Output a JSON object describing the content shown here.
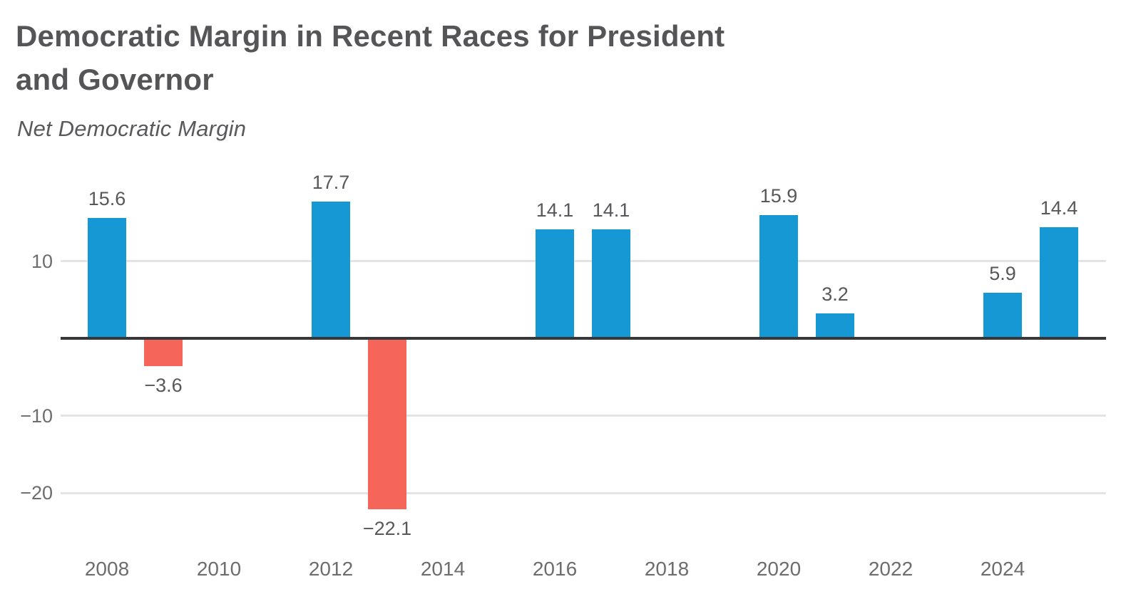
{
  "header": {
    "title_line1": "Democratic Margin in Recent Races for President",
    "title_line2": "and Governor",
    "subtitle": "Net Democratic Margin"
  },
  "colors": {
    "positive_bar": "#1598d3",
    "negative_bar": "#f6655a",
    "title_text": "#555557",
    "subtitle_text": "#59595b",
    "value_label_text": "#58585a",
    "tick_label_text": "#6d6d6f",
    "gridline": "#e4e4e4",
    "zero_line": "#373739",
    "background": "#ffffff"
  },
  "chart_data": {
    "type": "bar",
    "title": "Democratic Margin in Recent Races for President and Governor",
    "subtitle": "Net Democratic Margin",
    "xlabel": "",
    "ylabel": "Net Democratic Margin",
    "x": [
      2008,
      2009,
      2012,
      2013,
      2016,
      2017,
      2020,
      2021,
      2024,
      2025
    ],
    "values": [
      15.6,
      -3.6,
      17.7,
      -22.1,
      14.1,
      14.1,
      15.9,
      3.2,
      5.9,
      14.4
    ],
    "value_labels": [
      "15.6",
      "−3.6",
      "17.7",
      "−22.1",
      "14.1",
      "14.1",
      "15.9",
      "3.2",
      "5.9",
      "14.4"
    ],
    "x_tick_years": [
      2008,
      2010,
      2012,
      2014,
      2016,
      2018,
      2020,
      2022,
      2024
    ],
    "x_tick_labels": [
      "2008",
      "2010",
      "2012",
      "2014",
      "2016",
      "2018",
      "2020",
      "2022",
      "2024"
    ],
    "y_gridlines": [
      10,
      -10,
      -20
    ],
    "y_gridline_labels": [
      "10",
      "−10",
      "−20"
    ],
    "ylim": [
      -26,
      22
    ],
    "grid": "horizontal-only",
    "legend": "none",
    "bar_color_rule": "blue when positive, red when negative"
  }
}
